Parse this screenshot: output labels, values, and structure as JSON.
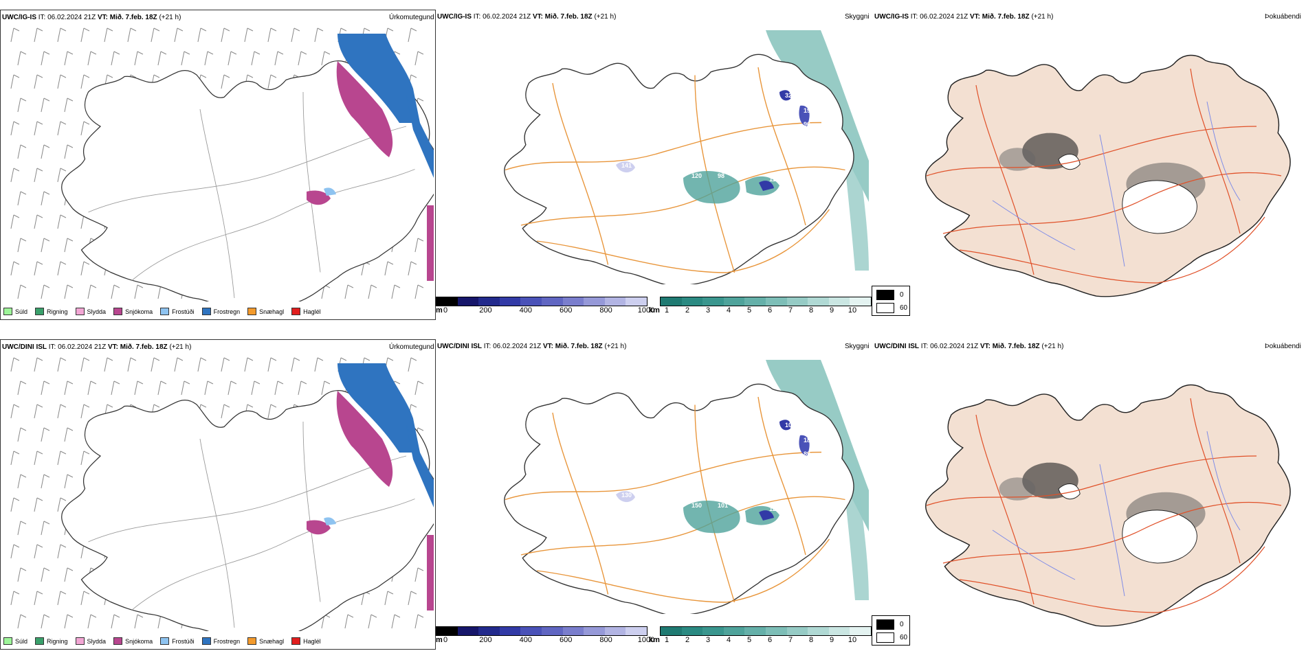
{
  "rows": [
    {
      "model": "UWC/IG-IS",
      "precip": {
        "header_model": "UWC/IG-IS",
        "it_label": "IT:",
        "it_value": "06.02.2024 21Z",
        "vt_label": "VT:",
        "vt_value": "Mið. 7.feb. 18Z",
        "lead": "(+21 h)",
        "right_title": "Úrkomutegund"
      },
      "vis": {
        "header_model": "UWC/IG-IS",
        "it_label": "IT:",
        "it_value": "06.02.2024 21Z",
        "vt_label": "VT:",
        "vt_value": "Mið. 7.feb. 18Z",
        "lead": "(+21 h)",
        "right_title": "Skyggni",
        "cell_labels": [
          "32",
          "190",
          "90",
          "141",
          "120",
          "98",
          "112"
        ]
      },
      "fog": {
        "header_model": "UWC/IG-IS",
        "it_label": "IT:",
        "it_value": "06.02.2024 21Z",
        "vt_label": "VT:",
        "vt_value": "Mið. 7.feb. 18Z",
        "lead": "(+21 h)",
        "right_title": "Þokuábendi"
      }
    },
    {
      "model": "UWC/DINI ISL",
      "precip": {
        "header_model": "UWC/DINI ISL",
        "it_label": "IT:",
        "it_value": "06.02.2024 21Z",
        "vt_label": "VT:",
        "vt_value": "Mið. 7.feb. 18Z",
        "lead": "(+21 h)",
        "right_title": "Úrkomutegund"
      },
      "vis": {
        "header_model": "UWC/DINI ISL",
        "it_label": "IT:",
        "it_value": "06.02.2024 21Z",
        "vt_label": "VT:",
        "vt_value": "Mið. 7.feb. 18Z",
        "lead": "(+21 h)",
        "right_title": "Skyggni",
        "cell_labels": [
          "107",
          "180",
          "89",
          "130",
          "150",
          "101",
          "121",
          "22"
        ]
      },
      "fog": {
        "header_model": "UWC/DINI ISL",
        "it_label": "IT:",
        "it_value": "06.02.2024 21Z",
        "vt_label": "VT:",
        "vt_value": "Mið. 7.feb. 18Z",
        "lead": "(+21 h)",
        "right_title": "Þokuábendi"
      }
    }
  ],
  "precip_legend": [
    {
      "label": "Súld",
      "color": "#9ef59a"
    },
    {
      "label": "Rigning",
      "color": "#3aa06b"
    },
    {
      "label": "Slydda",
      "color": "#f2a6d4"
    },
    {
      "label": "Snjókoma",
      "color": "#b8468f"
    },
    {
      "label": "Frostúði",
      "color": "#8ec3f0"
    },
    {
      "label": "Frostregn",
      "color": "#2f74c0"
    },
    {
      "label": "Snæhagl",
      "color": "#f39a2c"
    },
    {
      "label": "Haglél",
      "color": "#e11e1e"
    }
  ],
  "ceiling_bar": {
    "unit": "m",
    "ticks": [
      "0",
      "200",
      "400",
      "600",
      "800",
      "1000"
    ],
    "colors": [
      "#000000",
      "#16166a",
      "#222a8c",
      "#323aa6",
      "#4a52b8",
      "#6066c2",
      "#7a7ecd",
      "#9699d8",
      "#b2b4e3",
      "#cdcfef"
    ]
  },
  "vis_bar": {
    "unit": "km",
    "ticks": [
      "1",
      "2",
      "3",
      "4",
      "5",
      "6",
      "7",
      "8",
      "9",
      "10"
    ],
    "colors": [
      "#1f7a72",
      "#2b8a82",
      "#3a968e",
      "#4fa39b",
      "#65b0a9",
      "#7dbeb7",
      "#96cbc5",
      "#b0d9d4",
      "#cae6e2",
      "#e4f3f1"
    ]
  },
  "fog_legend": [
    {
      "label": "0",
      "color": "#000000"
    },
    {
      "label": "60",
      "color": "#ffffff"
    }
  ]
}
